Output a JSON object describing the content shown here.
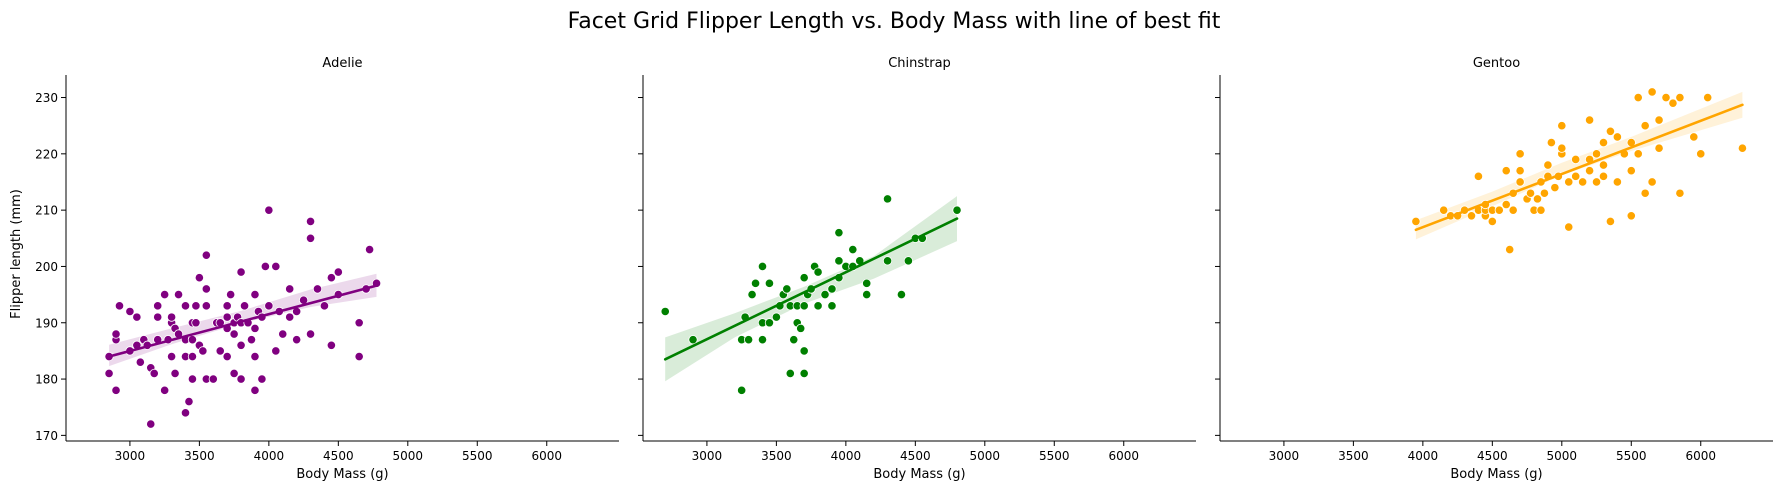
{
  "figure_title": "Facet Grid Flipper Length vs. Body Mass with line of best fit",
  "chart_data": {
    "type": "scatter",
    "title": "Facet Grid Flipper Length vs. Body Mass with line of best fit",
    "xlabel": "Body Mass (g)",
    "ylabel": "Flipper length (mm)",
    "xlim": [
      2540,
      6520
    ],
    "ylim": [
      169,
      234
    ],
    "xticks": [
      3000,
      3500,
      4000,
      4500,
      5000,
      5500,
      6000
    ],
    "yticks": [
      170,
      180,
      190,
      200,
      210,
      220,
      230
    ],
    "shared_axes": true,
    "grid": false,
    "legend": "none",
    "panels": [
      {
        "title": "Adelie",
        "color": "#800080",
        "fit": {
          "x": [
            2850,
            4775
          ],
          "y": [
            184.0,
            196.6
          ]
        },
        "ci_band": {
          "x": [
            2850,
            3300,
            3800,
            4300,
            4775
          ],
          "lower": [
            182.3,
            186.2,
            189.9,
            192.8,
            194.6
          ],
          "upper": [
            186.1,
            189.0,
            192.1,
            195.9,
            198.7
          ]
        },
        "points": [
          [
            2850,
            181
          ],
          [
            2850,
            184
          ],
          [
            2900,
            178
          ],
          [
            2900,
            187
          ],
          [
            2900,
            188
          ],
          [
            2925,
            193
          ],
          [
            3000,
            185
          ],
          [
            3000,
            192
          ],
          [
            3050,
            186
          ],
          [
            3050,
            191
          ],
          [
            3075,
            183
          ],
          [
            3100,
            187
          ],
          [
            3125,
            186
          ],
          [
            3150,
            182
          ],
          [
            3150,
            172
          ],
          [
            3175,
            181
          ],
          [
            3200,
            187
          ],
          [
            3200,
            191
          ],
          [
            3200,
            193
          ],
          [
            3250,
            178
          ],
          [
            3250,
            195
          ],
          [
            3275,
            187
          ],
          [
            3300,
            184
          ],
          [
            3300,
            190
          ],
          [
            3300,
            191
          ],
          [
            3325,
            181
          ],
          [
            3325,
            189
          ],
          [
            3350,
            188
          ],
          [
            3350,
            195
          ],
          [
            3400,
            174
          ],
          [
            3400,
            184
          ],
          [
            3400,
            187
          ],
          [
            3400,
            193
          ],
          [
            3425,
            176
          ],
          [
            3450,
            180
          ],
          [
            3450,
            184
          ],
          [
            3450,
            187
          ],
          [
            3450,
            190
          ],
          [
            3475,
            190
          ],
          [
            3475,
            193
          ],
          [
            3500,
            186
          ],
          [
            3500,
            198
          ],
          [
            3525,
            185
          ],
          [
            3550,
            180
          ],
          [
            3550,
            193
          ],
          [
            3550,
            196
          ],
          [
            3550,
            202
          ],
          [
            3600,
            180
          ],
          [
            3625,
            190
          ],
          [
            3650,
            185
          ],
          [
            3650,
            190
          ],
          [
            3700,
            184
          ],
          [
            3700,
            189
          ],
          [
            3700,
            191
          ],
          [
            3700,
            193
          ],
          [
            3725,
            195
          ],
          [
            3750,
            181
          ],
          [
            3750,
            188
          ],
          [
            3750,
            190
          ],
          [
            3775,
            191
          ],
          [
            3800,
            180
          ],
          [
            3800,
            186
          ],
          [
            3800,
            190
          ],
          [
            3800,
            199
          ],
          [
            3825,
            193
          ],
          [
            3850,
            190
          ],
          [
            3875,
            187
          ],
          [
            3900,
            178
          ],
          [
            3900,
            184
          ],
          [
            3900,
            189
          ],
          [
            3900,
            195
          ],
          [
            3925,
            192
          ],
          [
            3950,
            180
          ],
          [
            3950,
            191
          ],
          [
            3975,
            200
          ],
          [
            4000,
            210
          ],
          [
            4000,
            193
          ],
          [
            4050,
            185
          ],
          [
            4050,
            200
          ],
          [
            4075,
            192
          ],
          [
            4100,
            188
          ],
          [
            4150,
            191
          ],
          [
            4150,
            196
          ],
          [
            4200,
            187
          ],
          [
            4200,
            192
          ],
          [
            4250,
            194
          ],
          [
            4300,
            188
          ],
          [
            4300,
            208
          ],
          [
            4300,
            205
          ],
          [
            4350,
            196
          ],
          [
            4400,
            193
          ],
          [
            4450,
            186
          ],
          [
            4450,
            198
          ],
          [
            4500,
            195
          ],
          [
            4500,
            199
          ],
          [
            4650,
            184
          ],
          [
            4650,
            190
          ],
          [
            4700,
            196
          ],
          [
            4725,
            203
          ],
          [
            4775,
            197
          ]
        ]
      },
      {
        "title": "Chinstrap",
        "color": "#008000",
        "fit": {
          "x": [
            2700,
            4800
          ],
          "y": [
            183.5,
            208.5
          ]
        },
        "ci_band": {
          "x": [
            2700,
            3200,
            3700,
            4200,
            4800
          ],
          "lower": [
            179.6,
            187.4,
            193.4,
            197.8,
            204.5
          ],
          "upper": [
            187.4,
            191.7,
            196.4,
            201.8,
            212.5
          ]
        },
        "points": [
          [
            2700,
            192
          ],
          [
            2900,
            187
          ],
          [
            3250,
            178
          ],
          [
            3250,
            187
          ],
          [
            3275,
            191
          ],
          [
            3300,
            187
          ],
          [
            3325,
            195
          ],
          [
            3350,
            197
          ],
          [
            3400,
            187
          ],
          [
            3400,
            190
          ],
          [
            3400,
            200
          ],
          [
            3450,
            190
          ],
          [
            3450,
            197
          ],
          [
            3500,
            191
          ],
          [
            3525,
            193
          ],
          [
            3550,
            195
          ],
          [
            3575,
            196
          ],
          [
            3600,
            181
          ],
          [
            3600,
            193
          ],
          [
            3625,
            187
          ],
          [
            3650,
            190
          ],
          [
            3650,
            193
          ],
          [
            3675,
            189
          ],
          [
            3700,
            181
          ],
          [
            3700,
            185
          ],
          [
            3700,
            193
          ],
          [
            3700,
            198
          ],
          [
            3725,
            195
          ],
          [
            3750,
            196
          ],
          [
            3775,
            200
          ],
          [
            3800,
            193
          ],
          [
            3800,
            199
          ],
          [
            3850,
            195
          ],
          [
            3900,
            193
          ],
          [
            3900,
            196
          ],
          [
            3950,
            198
          ],
          [
            3950,
            201
          ],
          [
            3950,
            206
          ],
          [
            4000,
            200
          ],
          [
            4050,
            200
          ],
          [
            4050,
            203
          ],
          [
            4100,
            201
          ],
          [
            4150,
            195
          ],
          [
            4150,
            197
          ],
          [
            4300,
            201
          ],
          [
            4300,
            212
          ],
          [
            4400,
            195
          ],
          [
            4450,
            201
          ],
          [
            4500,
            205
          ],
          [
            4550,
            205
          ],
          [
            4800,
            210
          ]
        ]
      },
      {
        "title": "Gentoo",
        "color": "#FFA500",
        "fit": {
          "x": [
            3950,
            6300
          ],
          "y": [
            206.5,
            228.7
          ]
        },
        "ci_band": {
          "x": [
            3950,
            4500,
            5000,
            5500,
            6300
          ],
          "lower": [
            204.8,
            210.7,
            216.2,
            220.5,
            226.4
          ],
          "upper": [
            208.2,
            213.3,
            218.4,
            223.0,
            231.0
          ]
        },
        "points": [
          [
            3950,
            208
          ],
          [
            4150,
            210
          ],
          [
            4200,
            209
          ],
          [
            4250,
            209
          ],
          [
            4300,
            210
          ],
          [
            4350,
            209
          ],
          [
            4400,
            210
          ],
          [
            4400,
            216
          ],
          [
            4450,
            209
          ],
          [
            4450,
            210
          ],
          [
            4450,
            211
          ],
          [
            4500,
            208
          ],
          [
            4500,
            210
          ],
          [
            4550,
            210
          ],
          [
            4600,
            211
          ],
          [
            4600,
            217
          ],
          [
            4625,
            203
          ],
          [
            4650,
            210
          ],
          [
            4650,
            213
          ],
          [
            4700,
            215
          ],
          [
            4700,
            217
          ],
          [
            4700,
            220
          ],
          [
            4750,
            212
          ],
          [
            4775,
            213
          ],
          [
            4800,
            210
          ],
          [
            4825,
            212
          ],
          [
            4850,
            210
          ],
          [
            4850,
            215
          ],
          [
            4875,
            213
          ],
          [
            4900,
            216
          ],
          [
            4900,
            218
          ],
          [
            4925,
            222
          ],
          [
            4950,
            214
          ],
          [
            4975,
            216
          ],
          [
            5000,
            220
          ],
          [
            5000,
            221
          ],
          [
            5000,
            225
          ],
          [
            5050,
            207
          ],
          [
            5050,
            215
          ],
          [
            5100,
            216
          ],
          [
            5100,
            219
          ],
          [
            5150,
            215
          ],
          [
            5200,
            217
          ],
          [
            5200,
            219
          ],
          [
            5200,
            226
          ],
          [
            5250,
            215
          ],
          [
            5250,
            220
          ],
          [
            5300,
            216
          ],
          [
            5300,
            218
          ],
          [
            5300,
            222
          ],
          [
            5350,
            208
          ],
          [
            5350,
            224
          ],
          [
            5400,
            215
          ],
          [
            5400,
            223
          ],
          [
            5450,
            220
          ],
          [
            5500,
            209
          ],
          [
            5500,
            217
          ],
          [
            5500,
            222
          ],
          [
            5550,
            220
          ],
          [
            5550,
            230
          ],
          [
            5600,
            213
          ],
          [
            5600,
            225
          ],
          [
            5650,
            215
          ],
          [
            5650,
            231
          ],
          [
            5700,
            221
          ],
          [
            5700,
            226
          ],
          [
            5750,
            230
          ],
          [
            5800,
            229
          ],
          [
            5850,
            213
          ],
          [
            5850,
            230
          ],
          [
            5950,
            223
          ],
          [
            6000,
            220
          ],
          [
            6050,
            230
          ],
          [
            6300,
            221
          ]
        ]
      }
    ]
  }
}
